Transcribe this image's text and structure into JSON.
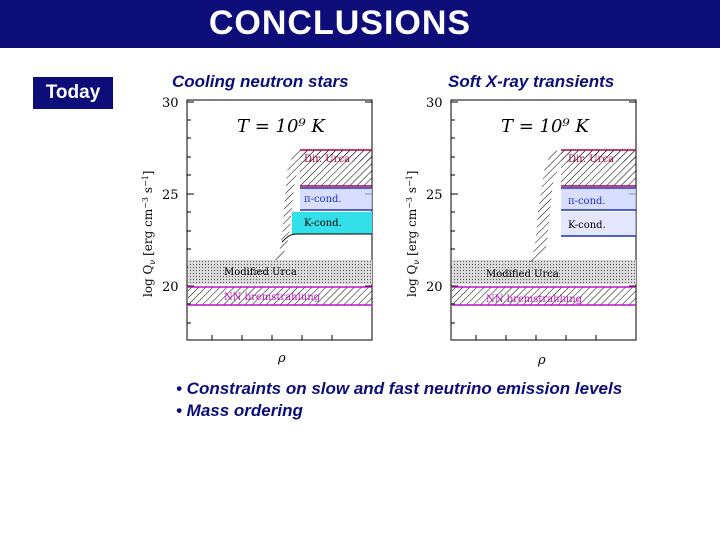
{
  "header": {
    "title": "CONCLUSIONS"
  },
  "badge": {
    "label": "Today"
  },
  "panels": [
    {
      "title": "Cooling neutron stars",
      "temperature_label": "T = 10⁹ K",
      "y_ticks": [
        "30",
        "25",
        "20"
      ],
      "x_label": "ρ",
      "bands": [
        "Dir. Urca",
        "π-cond.",
        "K-cond.",
        "Modified Urca",
        "NN bremstrahlung"
      ]
    },
    {
      "title": "Soft X-ray transients",
      "temperature_label": "T = 10⁹ K",
      "y_ticks": [
        "30",
        "25",
        "20"
      ],
      "x_label": "ρ",
      "bands": [
        "Dir. Urca",
        "π-cond.",
        "K-cond.",
        "Modified Urca",
        "NN bremstrahlung"
      ]
    }
  ],
  "bullets": [
    "• Constraints on slow and fast neutrino emission levels",
    "• Mass ordering"
  ],
  "colors": {
    "header_bg": "#0d0d7a",
    "text_blue": "#0d0d7a",
    "urca_red": "#b0004a",
    "pion_blue": "#2030c0",
    "kaon_cyan": "#33e0ea",
    "brem_magenta": "#c010c0"
  }
}
